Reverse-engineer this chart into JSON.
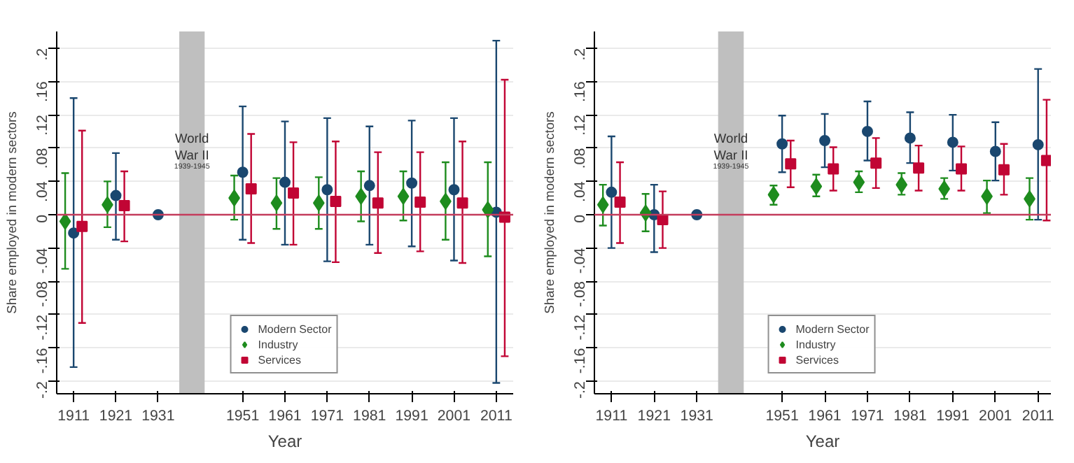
{
  "chart_data": [
    {
      "type": "scatter",
      "xlabel": "Year",
      "ylabel": "Share employed in modern sectors",
      "xlim": [
        1907,
        2015
      ],
      "xticks": [
        1911,
        1921,
        1931,
        1951,
        1961,
        1971,
        1981,
        1991,
        2001,
        2011
      ],
      "ylim": [
        -0.215,
        0.22
      ],
      "yticks": [
        {
          "value": -0.2,
          "label": "-.2"
        },
        {
          "value": -0.16,
          "label": "-.16"
        },
        {
          "value": -0.12,
          "label": "-.12"
        },
        {
          "value": -0.08,
          "label": "-.08"
        },
        {
          "value": -0.04,
          "label": "-.04"
        },
        {
          "value": 0,
          "label": "0"
        },
        {
          "value": 0.04,
          "label": ".04"
        },
        {
          "value": 0.08,
          "label": ".08"
        },
        {
          "value": 0.12,
          "label": ".12"
        },
        {
          "value": 0.16,
          "label": ".16"
        },
        {
          "value": 0.2,
          "label": ".2"
        }
      ],
      "grid": "y",
      "legend": "bottom",
      "bands": [
        {
          "axis": "x",
          "from": 1936,
          "to": 1942,
          "label": "World War II",
          "color": "#bfbfbf"
        }
      ],
      "annotations": [
        "1939-1945"
      ],
      "ref_lines": [
        {
          "axis": "y",
          "value": 0,
          "color": "#c43c5c"
        }
      ],
      "series": [
        {
          "name": "Modern Sector",
          "color": "#1a476f",
          "marker": "circle",
          "x": [
            1911,
            1921,
            1931,
            1951,
            1961,
            1971,
            1981,
            1991,
            2001,
            2011
          ],
          "values": [
            -0.022,
            0.023,
            0,
            0.051,
            0.039,
            0.03,
            0.035,
            0.038,
            0.03,
            0.003
          ],
          "errors": [
            [
              -0.183,
              0.14
            ],
            [
              -0.03,
              0.074
            ],
            null,
            [
              -0.03,
              0.13
            ],
            [
              -0.036,
              0.112
            ],
            [
              -0.056,
              0.116
            ],
            [
              -0.036,
              0.106
            ],
            [
              -0.038,
              0.113
            ],
            [
              -0.055,
              0.116
            ],
            [
              -0.202,
              0.209
            ]
          ]
        },
        {
          "name": "Industry",
          "color": "#1e8c1e",
          "marker": "diamond",
          "x": [
            1909,
            1919,
            1949,
            1959,
            1969,
            1979,
            1989,
            1999,
            2009
          ],
          "values": [
            -0.008,
            0.012,
            0.02,
            0.014,
            0.014,
            0.022,
            0.022,
            0.016,
            0.006
          ],
          "errors": [
            [
              -0.065,
              0.05
            ],
            [
              -0.015,
              0.04
            ],
            [
              -0.006,
              0.047
            ],
            [
              -0.017,
              0.044
            ],
            [
              -0.017,
              0.045
            ],
            [
              -0.008,
              0.052
            ],
            [
              -0.007,
              0.052
            ],
            [
              -0.03,
              0.063
            ],
            [
              -0.05,
              0.063
            ]
          ]
        },
        {
          "name": "Services",
          "color": "#c10534",
          "marker": "square",
          "x": [
            1913,
            1923,
            1953,
            1963,
            1973,
            1983,
            1993,
            2003,
            2013
          ],
          "values": [
            -0.014,
            0.011,
            0.031,
            0.026,
            0.016,
            0.014,
            0.015,
            0.014,
            -0.003
          ],
          "errors": [
            [
              -0.13,
              0.101
            ],
            [
              -0.032,
              0.052
            ],
            [
              -0.034,
              0.097
            ],
            [
              -0.036,
              0.087
            ],
            [
              -0.057,
              0.088
            ],
            [
              -0.046,
              0.075
            ],
            [
              -0.044,
              0.075
            ],
            [
              -0.058,
              0.088
            ],
            [
              -0.17,
              0.162
            ]
          ]
        }
      ]
    },
    {
      "type": "scatter",
      "xlabel": "Year",
      "ylabel": "Share employed in modern sectors",
      "xlim": [
        1907,
        2014
      ],
      "xticks": [
        1911,
        1921,
        1931,
        1951,
        1961,
        1971,
        1981,
        1991,
        2001,
        2011
      ],
      "ylim": [
        -0.215,
        0.22
      ],
      "yticks": [
        {
          "value": -0.2,
          "label": "-.2"
        },
        {
          "value": -0.16,
          "label": "-.16"
        },
        {
          "value": -0.12,
          "label": "-.12"
        },
        {
          "value": -0.08,
          "label": "-.08"
        },
        {
          "value": -0.04,
          "label": "-.04"
        },
        {
          "value": 0,
          "label": "0"
        },
        {
          "value": 0.04,
          "label": ".04"
        },
        {
          "value": 0.08,
          "label": ".08"
        },
        {
          "value": 0.12,
          "label": ".12"
        },
        {
          "value": 0.16,
          "label": ".16"
        },
        {
          "value": 0.2,
          "label": ".2"
        }
      ],
      "grid": "y",
      "legend": "bottom",
      "bands": [
        {
          "axis": "x",
          "from": 1936,
          "to": 1942,
          "label": "World War II",
          "color": "#bfbfbf"
        }
      ],
      "annotations": [
        "1939-1945"
      ],
      "ref_lines": [
        {
          "axis": "y",
          "value": 0,
          "color": "#c43c5c"
        }
      ],
      "series": [
        {
          "name": "Modern Sector",
          "color": "#1a476f",
          "marker": "circle",
          "x": [
            1911,
            1921,
            1931,
            1951,
            1961,
            1971,
            1981,
            1991,
            2001,
            2011
          ],
          "values": [
            0.027,
            0,
            0,
            0.085,
            0.089,
            0.1,
            0.092,
            0.087,
            0.076,
            0.084
          ],
          "errors": [
            [
              -0.04,
              0.094
            ],
            [
              -0.045,
              0.036
            ],
            null,
            [
              0.051,
              0.119
            ],
            [
              0.057,
              0.121
            ],
            [
              0.065,
              0.136
            ],
            [
              0.062,
              0.123
            ],
            [
              0.053,
              0.12
            ],
            [
              0.041,
              0.111
            ],
            [
              -0.006,
              0.175
            ]
          ]
        },
        {
          "name": "Industry",
          "color": "#1e8c1e",
          "marker": "diamond",
          "x": [
            1909,
            1919,
            1949,
            1959,
            1969,
            1979,
            1989,
            1999,
            2009
          ],
          "values": [
            0.012,
            0.002,
            0.024,
            0.034,
            0.039,
            0.036,
            0.031,
            0.022,
            0.019
          ],
          "errors": [
            [
              -0.013,
              0.036
            ],
            [
              -0.02,
              0.025
            ],
            [
              0.012,
              0.035
            ],
            [
              0.022,
              0.048
            ],
            [
              0.027,
              0.052
            ],
            [
              0.024,
              0.05
            ],
            [
              0.019,
              0.044
            ],
            [
              0.002,
              0.041
            ],
            [
              -0.006,
              0.044
            ]
          ]
        },
        {
          "name": "Services",
          "color": "#c10534",
          "marker": "square",
          "x": [
            1913,
            1923,
            1953,
            1963,
            1973,
            1983,
            1993,
            2003,
            2013
          ],
          "values": [
            0.015,
            -0.006,
            0.061,
            0.055,
            0.062,
            0.056,
            0.055,
            0.054,
            0.065
          ],
          "errors": [
            [
              -0.034,
              0.063
            ],
            [
              -0.04,
              0.028
            ],
            [
              0.033,
              0.089
            ],
            [
              0.029,
              0.081
            ],
            [
              0.032,
              0.092
            ],
            [
              0.029,
              0.083
            ],
            [
              0.029,
              0.082
            ],
            [
              0.024,
              0.085
            ],
            [
              -0.007,
              0.138
            ]
          ]
        }
      ]
    }
  ]
}
